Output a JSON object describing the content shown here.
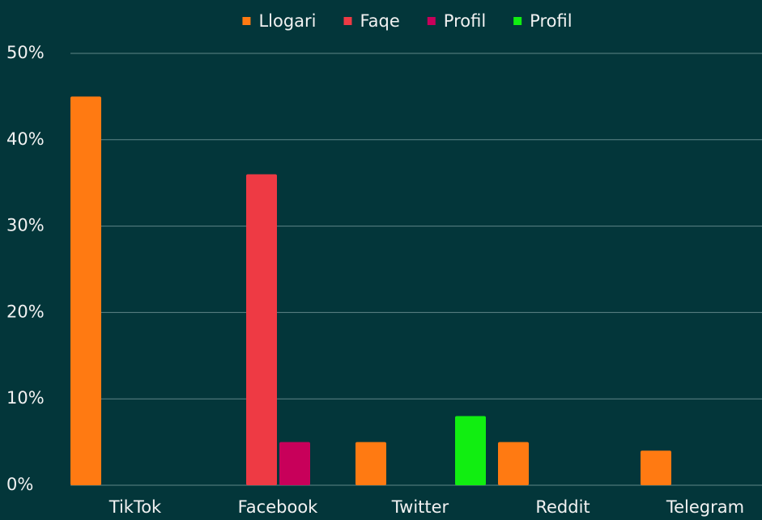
{
  "chart_data": {
    "type": "bar",
    "categories": [
      "TikTok",
      "Facebook",
      "Twitter",
      "Reddit",
      "Telegram"
    ],
    "series": [
      {
        "name": "Llogari",
        "color": "#ff7a12",
        "values": [
          45,
          null,
          5,
          5,
          4
        ]
      },
      {
        "name": "Faqe",
        "color": "#ee3a44",
        "values": [
          null,
          36,
          null,
          null,
          null
        ]
      },
      {
        "name": "Profil",
        "color": "#c8005a",
        "values": [
          null,
          5,
          null,
          null,
          null
        ]
      },
      {
        "name": "Profil",
        "color": "#11ee11",
        "values": [
          null,
          null,
          8,
          null,
          null
        ]
      }
    ],
    "ylim": [
      0,
      50
    ],
    "yticks": [
      {
        "value": 0,
        "label": "0%"
      },
      {
        "value": 10,
        "label": "10%"
      },
      {
        "value": 20,
        "label": "20%"
      },
      {
        "value": 30,
        "label": "30%"
      },
      {
        "value": 40,
        "label": "40%"
      },
      {
        "value": 50,
        "label": "50%"
      }
    ],
    "grid": true,
    "legend": "top"
  }
}
